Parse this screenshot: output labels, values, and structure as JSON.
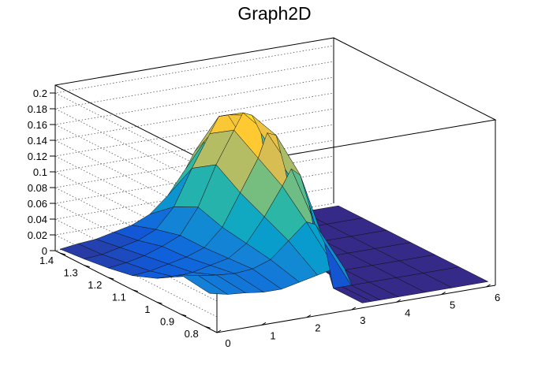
{
  "chart_data": {
    "type": "surface",
    "title": "Graph2D",
    "xlabel": "",
    "ylabel": "",
    "zlabel": "",
    "xlim": [
      0,
      6.2
    ],
    "ylim": [
      0.75,
      1.42
    ],
    "zlim": [
      0,
      0.21
    ],
    "x_ticks": [
      0,
      1,
      2,
      3,
      4,
      5,
      6
    ],
    "y_ticks": [
      0.8,
      0.9,
      1,
      1.1,
      1.2,
      1.3,
      1.4
    ],
    "z_ticks": [
      0,
      0.02,
      0.04,
      0.06,
      0.08,
      0.1,
      0.12,
      0.14,
      0.16,
      0.18,
      0.2
    ],
    "x_tick_labels": [
      "0",
      "1",
      "2",
      "3",
      "4",
      "5",
      "6"
    ],
    "y_tick_labels": [
      "0.8",
      "0.9",
      "1",
      "1.1",
      "1.2",
      "1.3",
      "1.4"
    ],
    "z_tick_labels": [
      "0",
      "0.02",
      "0.04",
      "0.06",
      "0.08",
      "0.1",
      "0.12",
      "0.14",
      "0.16",
      "0.18",
      "0.2"
    ],
    "grid": true,
    "colormap": [
      "#352a87",
      "#0f5cdd",
      "#1481d6",
      "#06a4ca",
      "#2eb7a4",
      "#87bf77",
      "#d1bb59",
      "#fec832",
      "#f9fb0e"
    ],
    "surface_x": [
      0,
      0.4,
      0.8,
      1.2,
      1.6,
      2.0,
      2.4,
      2.8,
      3.0,
      3.2,
      3.4,
      3.6,
      3.8,
      4.2,
      4.8,
      5.4,
      6.2
    ],
    "surface_y": [
      0.78,
      0.9,
      1.0,
      1.1,
      1.2,
      1.3,
      1.4
    ],
    "surface_z": [
      [
        0.045,
        0.04,
        0.038,
        0.035,
        0.035,
        0.04,
        0.045,
        0.05,
        0.048,
        0.02,
        0,
        0,
        0,
        0,
        0,
        0,
        0
      ],
      [
        0.05,
        0.045,
        0.042,
        0.04,
        0.042,
        0.05,
        0.07,
        0.09,
        0.085,
        0.06,
        0,
        0,
        0,
        0,
        0,
        0,
        0
      ],
      [
        0.03,
        0.028,
        0.03,
        0.035,
        0.04,
        0.055,
        0.085,
        0.12,
        0.14,
        0.13,
        0.09,
        0.03,
        0,
        0,
        0,
        0,
        0
      ],
      [
        0.018,
        0.02,
        0.025,
        0.03,
        0.038,
        0.06,
        0.1,
        0.14,
        0.17,
        0.165,
        0.12,
        0.06,
        0.01,
        0,
        0,
        0,
        0
      ],
      [
        0.012,
        0.015,
        0.02,
        0.028,
        0.038,
        0.07,
        0.12,
        0.16,
        0.18,
        0.175,
        0.15,
        0.08,
        0.01,
        0,
        0,
        0,
        0
      ],
      [
        0.008,
        0.01,
        0.015,
        0.02,
        0.03,
        0.055,
        0.1,
        0.14,
        0.16,
        0.16,
        0.14,
        0.1,
        0.01,
        0,
        0,
        0,
        0
      ],
      [
        0.005,
        0.008,
        0.01,
        0.015,
        0.02,
        0.03,
        0.05,
        0.08,
        0.1,
        0.11,
        0.1,
        0.08,
        0.01,
        0,
        0,
        0,
        0
      ]
    ]
  }
}
